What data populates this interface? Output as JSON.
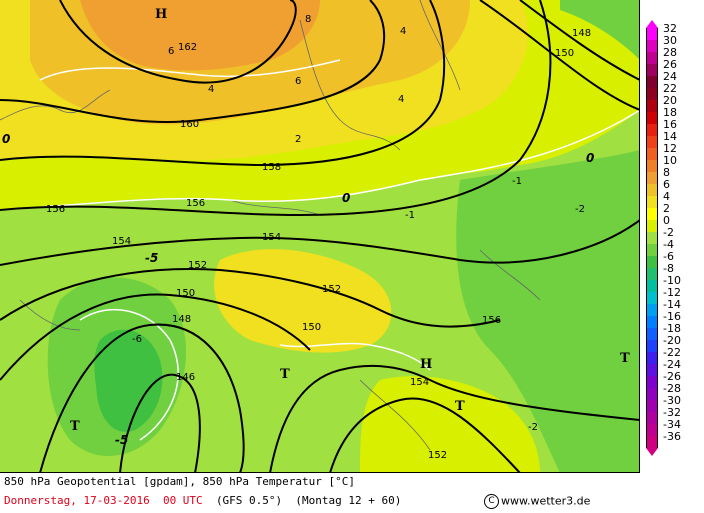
{
  "title": "850 hPa Geopotential [gpdam], 850 hPa Temperatur [°C]",
  "datetime": "Donnerstag, 17-03-2016  00 UTC",
  "model": "(GFS 0.5°)",
  "run": "(Montag 12 + 60)",
  "copyright": "www.wetter3.de",
  "copyright_symbol": "C",
  "legend": {
    "labels": [
      "32",
      "30",
      "28",
      "26",
      "24",
      "22",
      "20",
      "18",
      "16",
      "14",
      "12",
      "10",
      "8",
      "6",
      "4",
      "2",
      "0",
      "-2",
      "-4",
      "-6",
      "-8",
      "-10",
      "-12",
      "-14",
      "-16",
      "-18",
      "-20",
      "-22",
      "-24",
      "-26",
      "-28",
      "-30",
      "-32",
      "-34",
      "-36"
    ],
    "colors": [
      "#ff00ff",
      "#e000c0",
      "#c00090",
      "#a00060",
      "#800030",
      "#900020",
      "#b00010",
      "#d00000",
      "#e82010",
      "#f04018",
      "#f06020",
      "#f08028",
      "#f0a030",
      "#f0c028",
      "#f0e020",
      "#ffff00",
      "#d8f000",
      "#a0e040",
      "#70d040",
      "#40c040",
      "#20c070",
      "#00c0a0",
      "#00c0d0",
      "#00a0f0",
      "#0080ff",
      "#1060ff",
      "#2040ff",
      "#4020f0",
      "#6010e0",
      "#8000d0",
      "#9000c0",
      "#a000b0",
      "#b000a0",
      "#c00090",
      "#d00080"
    ]
  },
  "map": {
    "pressure_centers": [
      {
        "type": "H",
        "label": "H"
      },
      {
        "type": "H",
        "label": "H"
      },
      {
        "type": "T",
        "label": "T"
      },
      {
        "type": "T",
        "label": "T"
      },
      {
        "type": "T",
        "label": "T"
      },
      {
        "type": "T",
        "label": "T"
      }
    ],
    "geopotential_labels": [
      "162",
      "160",
      "158",
      "156",
      "154",
      "152",
      "150",
      "148",
      "146",
      "156",
      "154",
      "152",
      "150",
      "154",
      "152",
      "156",
      "148",
      "150"
    ],
    "isotherm_labels": [
      "8",
      "6",
      "6",
      "4",
      "4",
      "4",
      "2",
      "0",
      "0",
      "0",
      "-1",
      "-2",
      "-5",
      "-6",
      "-5",
      "-1",
      "-2"
    ]
  },
  "colors": {
    "warm": "#f0a030",
    "mild": "#f0e020",
    "neutral": "#d8f000",
    "cool": "#a0e040",
    "cold": "#70d040",
    "colder": "#40c040"
  }
}
